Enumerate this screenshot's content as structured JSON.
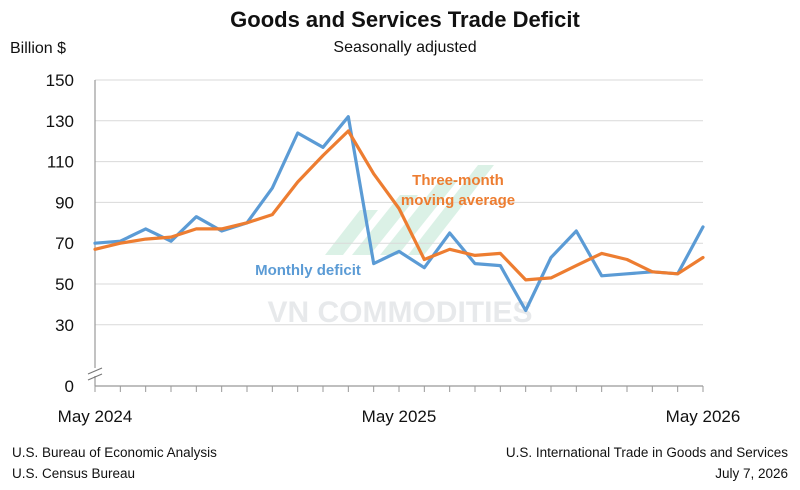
{
  "chart_data": {
    "type": "line",
    "title": "Goods and Services Trade Deficit",
    "subtitle": "Seasonally adjusted",
    "ylabel": "Billion $",
    "ylim": [
      0,
      150
    ],
    "yticks": [
      0,
      30,
      50,
      70,
      90,
      110,
      130,
      150
    ],
    "x_tick_labels": [
      "May 2024",
      "May 2025",
      "May 2026"
    ],
    "x_tick_label_index": [
      0,
      12,
      24
    ],
    "x": [
      "May 2024",
      "Jun 2024",
      "Jul 2024",
      "Aug 2024",
      "Sep 2024",
      "Oct 2024",
      "Nov 2024",
      "Dec 2024",
      "Jan 2025",
      "Feb 2025",
      "Mar 2025",
      "Apr 2025",
      "May 2025",
      "Jun 2025",
      "Jul 2025",
      "Aug 2025",
      "Sep 2025",
      "Oct 2025",
      "Nov 2025",
      "Dec 2025",
      "Jan 2026",
      "Feb 2026",
      "Mar 2026",
      "Apr 2026",
      "May 2026"
    ],
    "grid": true,
    "y_axis_break": true,
    "series": [
      {
        "name": "Monthly deficit",
        "color": "#5b9bd5",
        "values": [
          70,
          71,
          77,
          71,
          83,
          76,
          80,
          97,
          124,
          117,
          132,
          60,
          66,
          58,
          75,
          60,
          59,
          37,
          63,
          76,
          54,
          55,
          56,
          55,
          78
        ]
      },
      {
        "name": "Three-month moving average",
        "color": "#ed7d31",
        "values": [
          67,
          70,
          72,
          73,
          77,
          77,
          80,
          84,
          100,
          113,
          125,
          104,
          87,
          62,
          67,
          64,
          65,
          52,
          53,
          59,
          65,
          62,
          56,
          55,
          63
        ]
      }
    ],
    "annotations": [
      {
        "lines": [
          "Three-month",
          "moving average"
        ],
        "series": 1,
        "color": "#ed7d31"
      },
      {
        "lines": [
          "Monthly deficit"
        ],
        "series": 0,
        "color": "#5b9bd5"
      }
    ]
  },
  "footer": {
    "left_line1": "U.S. Bureau of Economic Analysis",
    "left_line2": "U.S. Census Bureau",
    "right_line1": "U.S. International Trade in Goods and Services",
    "right_line2": "July 7, 2026"
  },
  "watermark": "VN COMMODITIES"
}
